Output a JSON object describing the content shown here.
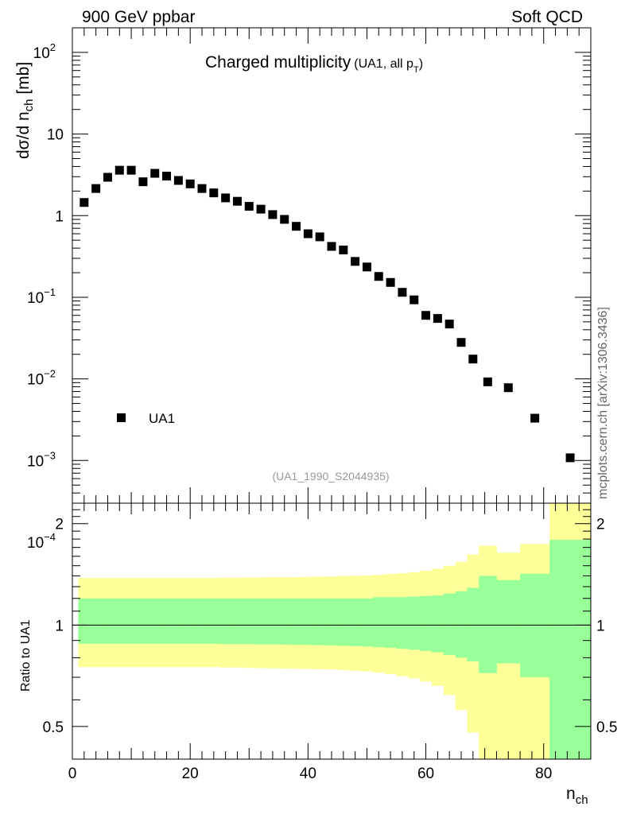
{
  "header": {
    "left": "900 GeV ppbar",
    "right": "Soft QCD"
  },
  "side_label": "mcplots.cern.ch [arXiv:1306.3436]",
  "colors": {
    "band_outer": "#ffff99",
    "band_inner": "#99ff99",
    "marker": "#000000",
    "ref_label": "#999999"
  },
  "chart_data": [
    {
      "type": "scatter",
      "panel": "main",
      "title": "Charged multiplicity",
      "title_sub_main": "(UA1, all p",
      "title_sub_index": "T",
      "title_sub_close": ")",
      "ylabel": "dσ/d n_ch [mb]",
      "yscale": "log",
      "xlim": [
        0,
        88
      ],
      "ylim": [
        0.0003,
        200
      ],
      "y_ticks": [
        {
          "value": 100,
          "base": "10",
          "exp": "2"
        },
        {
          "value": 10,
          "base": "10",
          "exp": ""
        },
        {
          "value": 1,
          "base": "1",
          "exp": ""
        },
        {
          "value": 0.1,
          "base": "10",
          "exp": "−1"
        },
        {
          "value": 0.01,
          "base": "10",
          "exp": "−2"
        },
        {
          "value": 0.001,
          "base": "10",
          "exp": "−3"
        },
        {
          "value": 0.0001,
          "base": "10",
          "exp": "−4"
        }
      ],
      "reference_tag": "(UA1_1990_S2044935)",
      "legend": {
        "position": "bottom-left",
        "label": "UA1"
      },
      "series": [
        {
          "name": "UA1",
          "marker": "square",
          "x": [
            2,
            4,
            6,
            8,
            10,
            12,
            14,
            16,
            18,
            20,
            22,
            24,
            26,
            28,
            30,
            32,
            34,
            36,
            38,
            40,
            42,
            44,
            46,
            48,
            50,
            52,
            54,
            56,
            58,
            60,
            62,
            64,
            66,
            68,
            70.5,
            74,
            78.5,
            84.5
          ],
          "y": [
            1.45,
            2.15,
            2.95,
            3.6,
            3.6,
            2.6,
            3.3,
            3.05,
            2.7,
            2.45,
            2.15,
            1.9,
            1.65,
            1.5,
            1.3,
            1.2,
            1.03,
            0.9,
            0.74,
            0.6,
            0.55,
            0.42,
            0.38,
            0.275,
            0.235,
            0.18,
            0.152,
            0.115,
            0.093,
            0.06,
            0.055,
            0.047,
            0.028,
            0.0175,
            0.0092,
            0.0078,
            0.0033,
            0.00108
          ]
        }
      ]
    },
    {
      "type": "area",
      "panel": "ratio",
      "ylabel": "Ratio to UA1",
      "xlabel": "n_ch",
      "xlim": [
        0,
        88
      ],
      "ylim": [
        0.4,
        2.3
      ],
      "x_ticks": [
        "0",
        "20",
        "40",
        "60",
        "80"
      ],
      "y_ticks": [
        {
          "value": 0.5,
          "label": "0.5"
        },
        {
          "value": 1,
          "label": "1"
        },
        {
          "value": 2,
          "label": "2"
        }
      ],
      "reference_line": 1,
      "bins_lo": [
        1,
        3,
        5,
        7,
        9,
        11,
        13,
        15,
        17,
        19,
        21,
        23,
        25,
        27,
        29,
        31,
        33,
        35,
        37,
        39,
        41,
        43,
        45,
        47,
        49,
        51,
        53,
        55,
        57,
        59,
        61,
        63,
        65,
        67,
        69,
        72,
        76,
        81
      ],
      "bins_hi": [
        3,
        5,
        7,
        9,
        11,
        13,
        15,
        17,
        19,
        21,
        23,
        25,
        27,
        29,
        31,
        33,
        35,
        37,
        39,
        41,
        43,
        45,
        47,
        49,
        51,
        53,
        55,
        57,
        59,
        61,
        63,
        65,
        67,
        69,
        72,
        76,
        81,
        88
      ],
      "inner_band": {
        "name": "stat",
        "lo": [
          0.88,
          0.88,
          0.88,
          0.88,
          0.88,
          0.88,
          0.88,
          0.88,
          0.88,
          0.88,
          0.88,
          0.88,
          0.878,
          0.878,
          0.878,
          0.876,
          0.876,
          0.875,
          0.874,
          0.873,
          0.872,
          0.87,
          0.868,
          0.866,
          0.864,
          0.86,
          0.856,
          0.85,
          0.845,
          0.838,
          0.83,
          0.815,
          0.8,
          0.78,
          0.72,
          0.77,
          0.7,
          0.35
        ],
        "hi": [
          1.2,
          1.2,
          1.2,
          1.2,
          1.2,
          1.2,
          1.2,
          1.2,
          1.2,
          1.2,
          1.2,
          1.2,
          1.2,
          1.2,
          1.2,
          1.2,
          1.2,
          1.2,
          1.2,
          1.2,
          1.2,
          1.2,
          1.2,
          1.2,
          1.2,
          1.21,
          1.21,
          1.21,
          1.215,
          1.22,
          1.225,
          1.24,
          1.26,
          1.29,
          1.4,
          1.36,
          1.42,
          1.79
        ]
      },
      "outer_band": {
        "name": "total",
        "lo": [
          0.75,
          0.75,
          0.75,
          0.75,
          0.75,
          0.75,
          0.75,
          0.75,
          0.75,
          0.75,
          0.75,
          0.75,
          0.748,
          0.748,
          0.746,
          0.745,
          0.744,
          0.743,
          0.742,
          0.741,
          0.74,
          0.738,
          0.735,
          0.732,
          0.728,
          0.722,
          0.715,
          0.705,
          0.695,
          0.68,
          0.66,
          0.62,
          0.56,
          0.48,
          0.3,
          0.37,
          0.25,
          0.25
        ],
        "hi": [
          1.38,
          1.38,
          1.38,
          1.38,
          1.38,
          1.38,
          1.38,
          1.38,
          1.38,
          1.38,
          1.38,
          1.38,
          1.382,
          1.382,
          1.384,
          1.385,
          1.386,
          1.387,
          1.388,
          1.39,
          1.392,
          1.395,
          1.398,
          1.4,
          1.405,
          1.41,
          1.418,
          1.425,
          1.435,
          1.45,
          1.47,
          1.5,
          1.54,
          1.62,
          1.72,
          1.64,
          1.74,
          2.5
        ]
      }
    }
  ]
}
